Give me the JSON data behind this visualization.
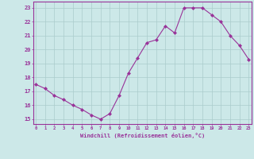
{
  "x": [
    0,
    1,
    2,
    3,
    4,
    5,
    6,
    7,
    8,
    9,
    10,
    11,
    12,
    13,
    14,
    15,
    16,
    17,
    18,
    19,
    20,
    21,
    22,
    23
  ],
  "y": [
    17.5,
    17.2,
    16.7,
    16.4,
    16.0,
    15.7,
    15.3,
    15.0,
    15.4,
    16.7,
    18.3,
    19.4,
    20.5,
    20.7,
    21.7,
    21.2,
    23.0,
    23.0,
    23.0,
    22.5,
    22.0,
    21.0,
    20.3,
    19.3
  ],
  "line_color": "#993399",
  "marker_color": "#993399",
  "bg_color": "#cce8e8",
  "grid_color": "#aacccc",
  "xlabel": "Windchill (Refroidissement éolien,°C)",
  "ylabel": "",
  "yticks": [
    15,
    16,
    17,
    18,
    19,
    20,
    21,
    22,
    23
  ],
  "xticks": [
    0,
    1,
    2,
    3,
    4,
    5,
    6,
    7,
    8,
    9,
    10,
    11,
    12,
    13,
    14,
    15,
    16,
    17,
    18,
    19,
    20,
    21,
    22,
    23
  ],
  "ylim": [
    14.65,
    23.45
  ],
  "xlim": [
    -0.3,
    23.3
  ],
  "tick_color": "#993399",
  "label_color": "#993399"
}
